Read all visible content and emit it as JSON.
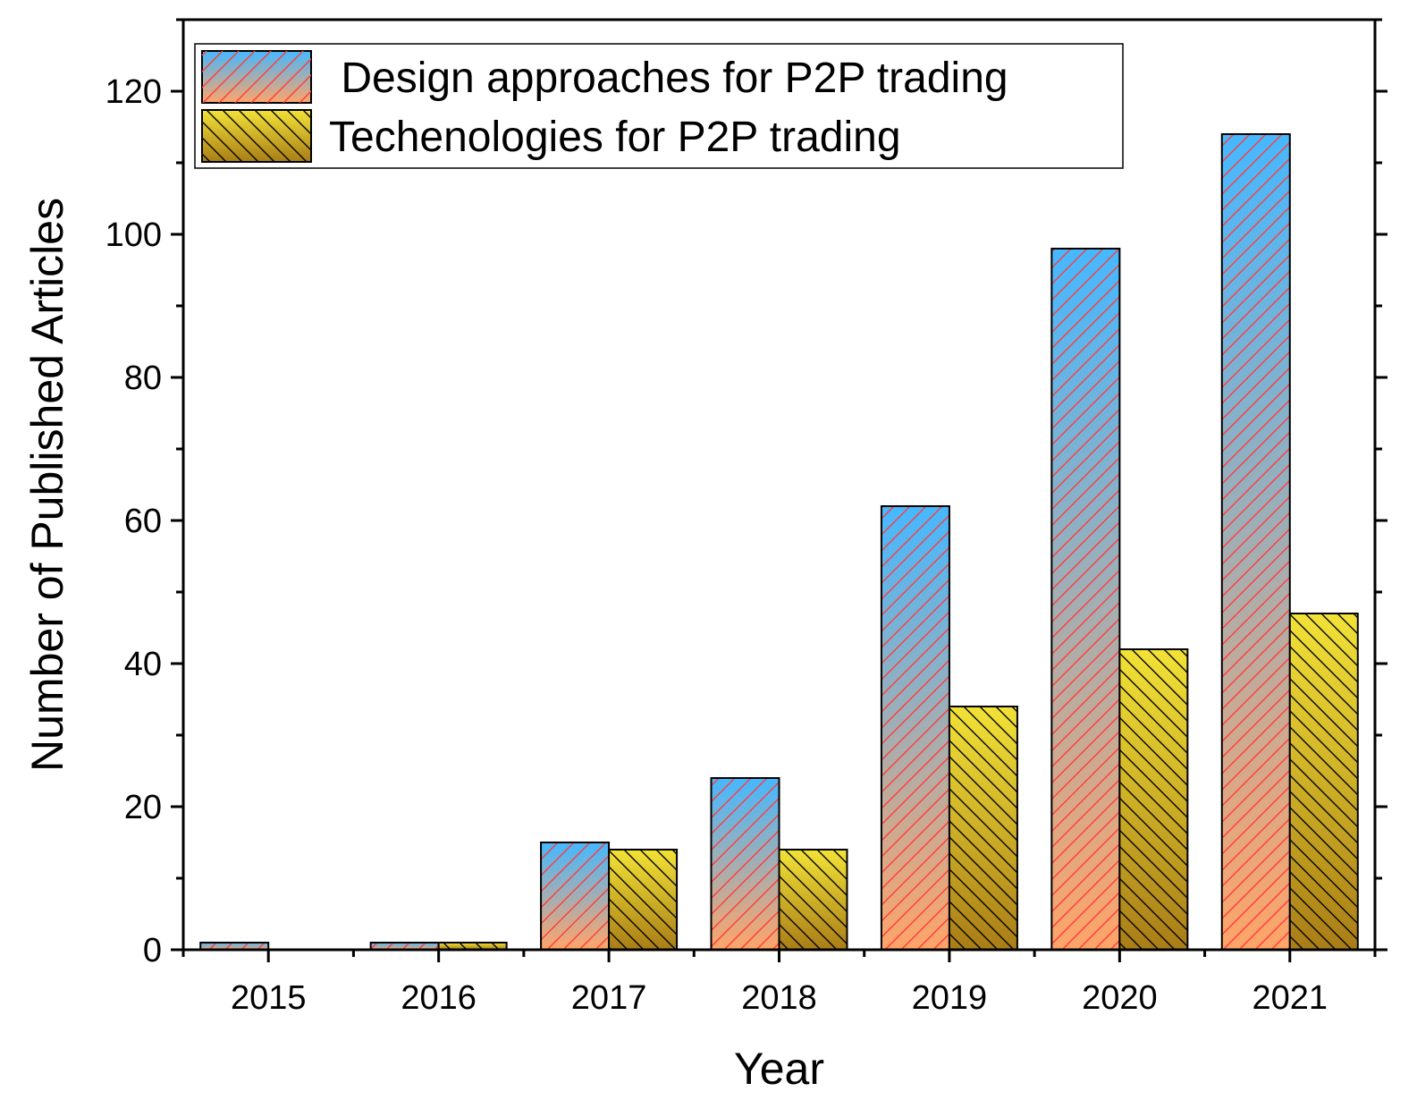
{
  "chart_data": {
    "type": "bar",
    "title": "",
    "xlabel": "Year",
    "ylabel": "Number of Published Articles",
    "categories": [
      "2015",
      "2016",
      "2017",
      "2018",
      "2019",
      "2020",
      "2021"
    ],
    "series": [
      {
        "name": " Design approaches for P2P trading",
        "values": [
          1,
          1,
          15,
          24,
          62,
          98,
          114
        ],
        "gradient_top": "#45B8FF",
        "gradient_bottom": "#FFA468",
        "hatch_color": "#FF3B3B"
      },
      {
        "name": "Techenologies for P2P trading",
        "values": [
          0,
          1,
          14,
          14,
          34,
          42,
          47
        ],
        "gradient_top": "#F2E237",
        "gradient_bottom": "#A97D16",
        "hatch_color": "#000000"
      }
    ],
    "ylim": [
      0,
      130
    ],
    "yticks": [
      0,
      20,
      40,
      60,
      80,
      100,
      120
    ],
    "legend_position": "top-left",
    "grid": false
  }
}
